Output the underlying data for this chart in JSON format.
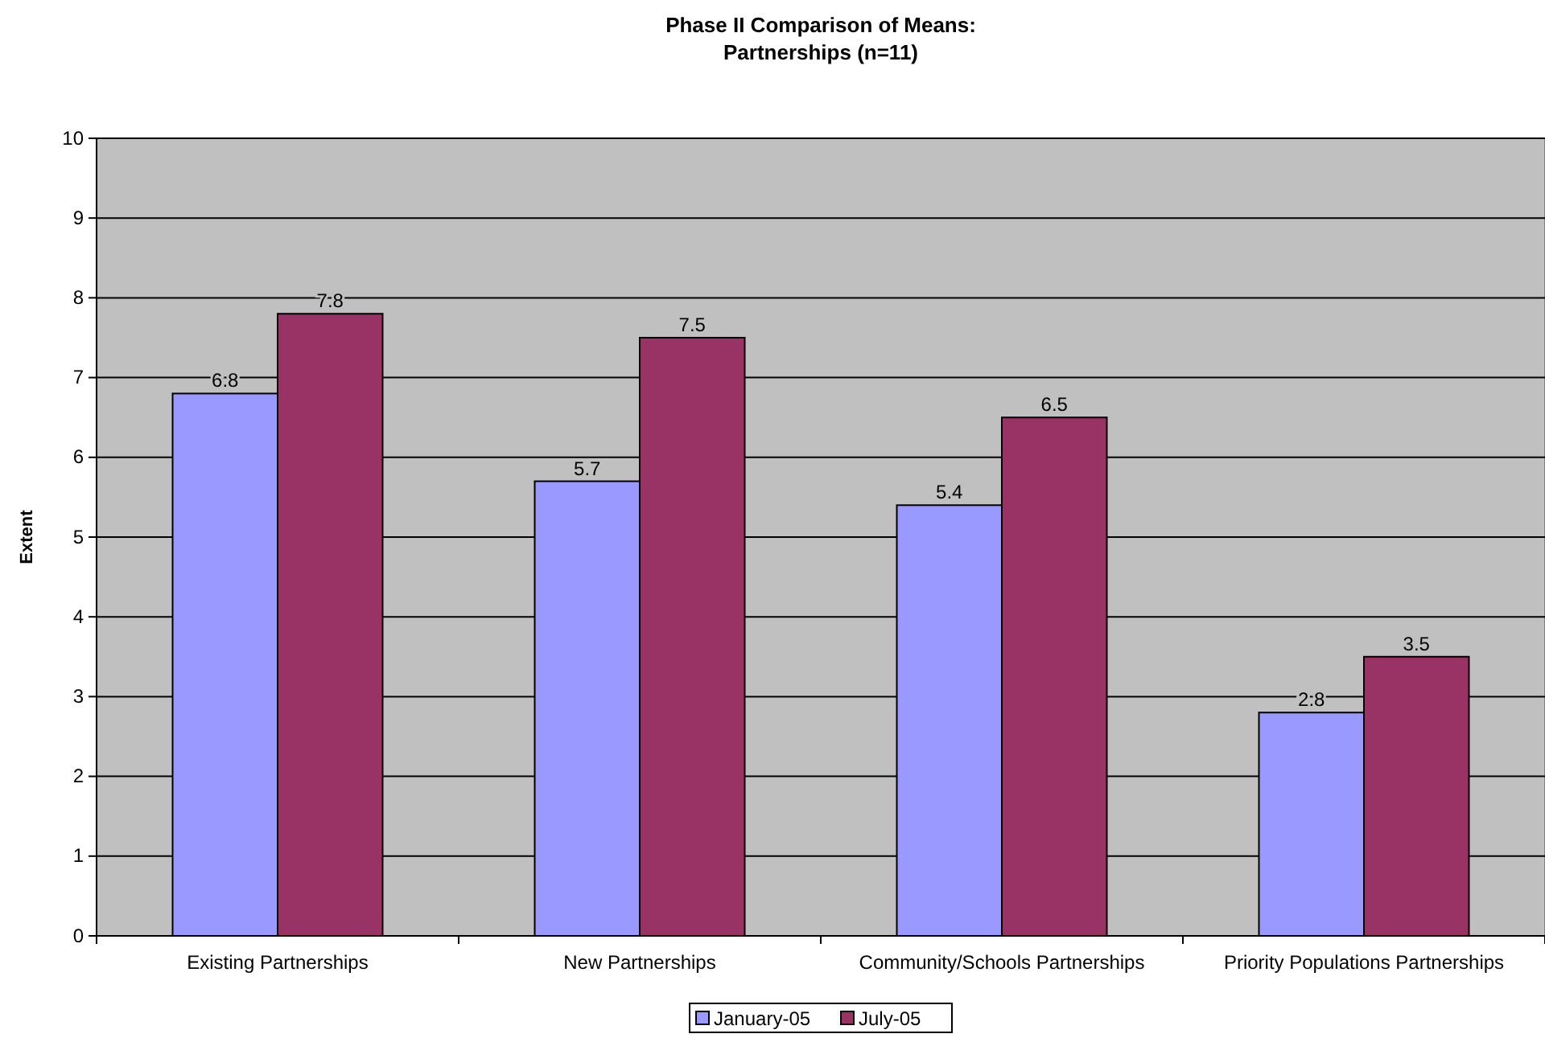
{
  "chart_data": {
    "type": "bar",
    "title": "Phase II Comparison of Means:\nPartnerships (n=11)",
    "ylabel": "Extent",
    "categories": [
      "Existing Partnerships",
      "New Partnerships",
      "Community/Schools Partnerships",
      "Priority Populations Partnerships"
    ],
    "series": [
      {
        "name": "January-05",
        "color": "#9999ff",
        "values": [
          6.8,
          5.7,
          5.4,
          2.8
        ]
      },
      {
        "name": "July-05",
        "color": "#993366",
        "values": [
          7.8,
          7.5,
          6.5,
          3.5
        ]
      }
    ],
    "ylim": [
      0,
      10
    ],
    "yticks": [
      0,
      1,
      2,
      3,
      4,
      5,
      6,
      7,
      8,
      9,
      10
    ],
    "grid": "y",
    "legend": "bottom",
    "data_labels": true
  }
}
